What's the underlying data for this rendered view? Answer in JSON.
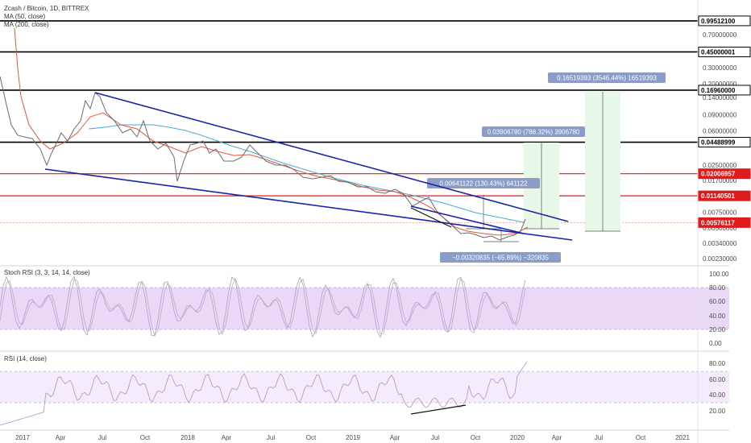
{
  "header": {
    "symbol": "Zcash / Bitcoin, 1D, BITTREX",
    "ma50": "MA (50, close)",
    "ma200": "MA (200, close)"
  },
  "panes": {
    "stoch_title": "Stoch RSI (3, 3, 14, 14, close)",
    "rsi_title": "RSI (14, close)"
  },
  "colors": {
    "price_line": "#6b6b6b",
    "ma50": "#e8573a",
    "ma200": "#4aa8d8",
    "trendline": "#1a23a8",
    "red_level": "#e01b1b",
    "black_level": "#000000",
    "measure_fill": "#e8f8e8",
    "measure_label_bg": "#8a9cc8",
    "stoch_band": "#e9d9f7",
    "stoch_line": "#b59bd6",
    "rsi_line": "#b59bd6"
  },
  "chart_data": [
    {
      "type": "line",
      "scale": "log",
      "y_ticks": [
        "0.70000000",
        "0.30000000",
        "0.20000000",
        "0.14000000",
        "0.09000000",
        "0.06000000",
        "0.02500000",
        "0.01700000",
        "0.00750000",
        "0.00500000",
        "0.00340000",
        "0.00230000"
      ],
      "x_ticks": [
        "2017",
        "Apr",
        "Jul",
        "Oct",
        "2018",
        "Apr",
        "Jul",
        "Oct",
        "2019",
        "Apr",
        "Jul",
        "Oct",
        "2020",
        "Apr",
        "Jul",
        "Oct",
        "2021"
      ],
      "price_labels": [
        {
          "value": "0.99512100",
          "style": "black"
        },
        {
          "value": "0.45000001",
          "style": "black"
        },
        {
          "value": "0.16960000",
          "style": "black"
        },
        {
          "value": "0.04488999",
          "style": "black"
        },
        {
          "value": "0.02006957",
          "style": "red"
        },
        {
          "value": "0.01140501",
          "style": "red"
        },
        {
          "value": "0.00576117",
          "style": "red"
        }
      ],
      "horizontal_levels": [
        {
          "price": 0.995121,
          "color": "black"
        },
        {
          "price": 0.45,
          "color": "black"
        },
        {
          "price": 0.1696,
          "color": "black"
        },
        {
          "price": 0.04489,
          "color": "black"
        },
        {
          "price": 0.02007,
          "color": "red"
        },
        {
          "price": 0.011405,
          "color": "red"
        },
        {
          "price": 0.005761,
          "color": "salmon-dotted"
        }
      ],
      "measurements": [
        {
          "text": "0.16519393 (3546.44%) 16519393"
        },
        {
          "text": "0.03906780 (788.32%) 3906780"
        },
        {
          "text": "0.00641122 (130.43%) 641122"
        },
        {
          "text": "−0.00320835 (−65.89%) −320835"
        }
      ],
      "series": [
        {
          "name": "MA (50, close)",
          "color": "#e8573a"
        },
        {
          "name": "MA (200, close)",
          "color": "#4aa8d8"
        }
      ]
    },
    {
      "type": "line",
      "y_ticks": [
        "100.00",
        "80.00",
        "60.00",
        "40.00",
        "20.00",
        "0.00"
      ],
      "band": [
        20,
        80
      ]
    },
    {
      "type": "line",
      "y_ticks": [
        "80.00",
        "60.00",
        "40.00",
        "20.00"
      ],
      "band": [
        30,
        70
      ]
    }
  ]
}
